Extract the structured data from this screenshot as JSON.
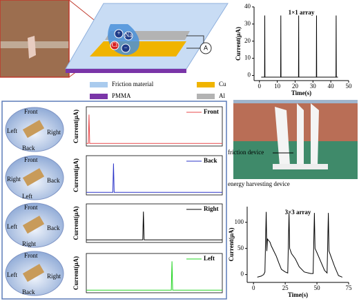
{
  "chart_data": [
    {
      "type": "line",
      "title": "1×1 array",
      "x_label": "Time(s)",
      "y_label": "Current(μA)",
      "color": "#000000",
      "x": [
        1,
        2.9,
        3,
        3.1,
        11.9,
        12,
        12.1,
        21.9,
        22,
        22.1,
        31.9,
        32,
        32.1,
        42.9,
        43,
        43.1,
        44
      ],
      "values": [
        -1,
        -1,
        35,
        -1,
        -1,
        35,
        -1,
        -1,
        35,
        -1,
        -1,
        35,
        -1,
        -1,
        35,
        -1,
        -1
      ],
      "xlim": [
        -3,
        50
      ],
      "xticks": [
        0,
        10,
        20,
        30,
        40,
        50
      ],
      "ylim": [
        -3,
        40
      ],
      "yticks": [
        0,
        10,
        20,
        30,
        40
      ]
    },
    {
      "type": "line",
      "y_label": "Current(μA)",
      "x": [
        0,
        1.5,
        2,
        2.5,
        100
      ],
      "series": [
        {
          "name": "Front",
          "color": "#e8474a",
          "values": [
            0,
            0,
            5.5,
            0,
            0
          ]
        }
      ],
      "xlim": [
        0,
        100
      ],
      "ylim": [
        -0.5,
        7
      ]
    },
    {
      "type": "line",
      "y_label": "Current(μA)",
      "x": [
        0,
        19.5,
        20,
        20.5,
        100
      ],
      "series": [
        {
          "name": "Back",
          "color": "#2b34c8",
          "values": [
            0,
            0,
            5.5,
            0,
            0
          ]
        }
      ],
      "xlim": [
        0,
        100
      ],
      "ylim": [
        -0.5,
        7
      ]
    },
    {
      "type": "line",
      "y_label": "Current(μA)",
      "x": [
        0,
        41.5,
        42,
        42.5,
        100
      ],
      "series": [
        {
          "name": "Right",
          "color": "#000000",
          "values": [
            0,
            0,
            5.5,
            0,
            0
          ]
        }
      ],
      "xlim": [
        0,
        100
      ],
      "ylim": [
        -0.5,
        7
      ]
    },
    {
      "type": "line",
      "y_label": "Current(μA)",
      "x": [
        0,
        62.5,
        63,
        63.5,
        100
      ],
      "series": [
        {
          "name": "Left",
          "color": "#22d422",
          "values": [
            0,
            0,
            5.5,
            0,
            0
          ]
        }
      ],
      "xlim": [
        0,
        100
      ],
      "ylim": [
        -0.5,
        7
      ]
    },
    {
      "type": "line",
      "title": "3×3 array",
      "x_label": "Time(s)",
      "y_label": "Current(μA)",
      "color": "#000000",
      "x": [
        3,
        6,
        8,
        9,
        10,
        10.5,
        11,
        12,
        13,
        14,
        16,
        18,
        20,
        22,
        25,
        27,
        28,
        28.5,
        30,
        33,
        36,
        40,
        45,
        47,
        48,
        48.5,
        50,
        53,
        56,
        58,
        59,
        59.5,
        61,
        64,
        67,
        70
      ],
      "values": [
        -5,
        -3,
        0,
        5,
        120,
        45,
        68,
        65,
        62,
        55,
        45,
        35,
        22,
        10,
        5,
        3,
        118,
        50,
        40,
        30,
        15,
        5,
        2,
        2,
        118,
        50,
        42,
        25,
        8,
        3,
        118,
        45,
        35,
        15,
        -2,
        -5
      ],
      "xlim": [
        -5,
        75
      ],
      "xticks": [
        0,
        25,
        50,
        75
      ],
      "ylim": [
        -15,
        130
      ],
      "yticks": [
        0,
        50,
        100
      ]
    }
  ],
  "materials": [
    {
      "label": "Friction material",
      "color": "#a9cbee"
    },
    {
      "label": "Cu",
      "color": "#f0b400"
    },
    {
      "label": "PMMA",
      "color": "#7a35a8"
    },
    {
      "label": "Al",
      "color": "#b3b3b3"
    }
  ],
  "diagram": {
    "ammeter": "A",
    "ions": [
      "+",
      "Na",
      "Cl",
      "−"
    ]
  },
  "photo_labels": [
    "friction device",
    "energy harvesting device"
  ],
  "bowls": [
    [
      "Front",
      "Left",
      "Back",
      "Right"
    ],
    [
      "Front",
      "Right",
      "Left",
      "Back"
    ],
    [
      "Front",
      "Left",
      "Right",
      "Back"
    ],
    [
      "Front",
      "Left",
      "Back",
      "Right"
    ]
  ]
}
